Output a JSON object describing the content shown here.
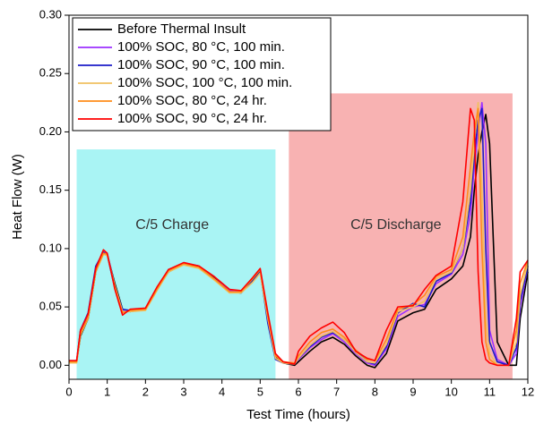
{
  "chart_data": {
    "type": "line",
    "x_label": "Test Time (hours)",
    "y_label": "Heat Flow (W)",
    "xlim": [
      0,
      12
    ],
    "xticks": [
      0,
      1,
      2,
      3,
      4,
      5,
      6,
      7,
      8,
      9,
      10,
      11,
      12
    ],
    "ylim": [
      -0.012,
      0.3
    ],
    "yticks": [
      {
        "value": 0,
        "label": "0.00"
      },
      {
        "value": 0.05,
        "label": "0.05"
      },
      {
        "value": 0.1,
        "label": "0.10"
      },
      {
        "value": 0.15,
        "label": "0.15"
      },
      {
        "value": 0.2,
        "label": "0.20"
      },
      {
        "value": 0.25,
        "label": "0.25"
      },
      {
        "value": 0.3,
        "label": "0.30"
      }
    ],
    "legend_position": "upper left",
    "regions": [
      {
        "label": "C/5 Charge",
        "x": [
          0.2,
          5.4
        ],
        "y_top": 0.185,
        "color": "#a9f4f4",
        "label_x": 2.7,
        "label_y": 0.12
      },
      {
        "label": "C/5 Discharge",
        "x": [
          5.75,
          11.6
        ],
        "y_top": 0.233,
        "color": "#f8b2b2",
        "label_x": 8.55,
        "label_y": 0.12
      }
    ],
    "x": [
      0,
      0.2,
      0.3,
      0.5,
      0.7,
      0.9,
      1.0,
      1.2,
      1.4,
      1.6,
      2.0,
      2.3,
      2.6,
      3.0,
      3.4,
      3.8,
      4.2,
      4.5,
      4.8,
      5.0,
      5.2,
      5.4,
      5.6,
      5.9,
      6.0,
      6.3,
      6.6,
      6.9,
      7.2,
      7.5,
      7.8,
      8.0,
      8.3,
      8.6,
      9.0,
      9.3,
      9.6,
      10.0,
      10.3,
      10.5,
      10.6,
      10.7,
      10.8,
      10.9,
      11.0,
      11.2,
      11.5,
      11.7,
      11.8,
      12
    ],
    "series": [
      {
        "name": "Before Thermal Insult",
        "color": "#000000",
        "values": [
          0.003,
          0.003,
          0.025,
          0.04,
          0.08,
          0.096,
          0.095,
          0.07,
          0.048,
          0.046,
          0.048,
          0.065,
          0.08,
          0.087,
          0.084,
          0.075,
          0.063,
          0.062,
          0.072,
          0.08,
          0.04,
          0.007,
          0.002,
          0.0,
          0.003,
          0.012,
          0.02,
          0.024,
          0.018,
          0.008,
          0.0,
          -0.002,
          0.01,
          0.038,
          0.045,
          0.048,
          0.065,
          0.074,
          0.085,
          0.11,
          0.15,
          0.18,
          0.2,
          0.215,
          0.19,
          0.02,
          0.0,
          0.0,
          0.04,
          0.08
        ]
      },
      {
        "name": "100% SOC, 80 °C, 100 min.",
        "color": "#9b30ff",
        "values": [
          0.003,
          0.003,
          0.028,
          0.042,
          0.082,
          0.097,
          0.096,
          0.068,
          0.047,
          0.047,
          0.048,
          0.066,
          0.081,
          0.088,
          0.085,
          0.074,
          0.064,
          0.063,
          0.074,
          0.081,
          0.038,
          0.006,
          0.002,
          0.001,
          0.005,
          0.015,
          0.022,
          0.027,
          0.02,
          0.01,
          0.002,
          0.0,
          0.014,
          0.042,
          0.05,
          0.052,
          0.07,
          0.078,
          0.095,
          0.13,
          0.17,
          0.2,
          0.225,
          0.19,
          0.03,
          0.005,
          0.0,
          0.01,
          0.05,
          0.085
        ]
      },
      {
        "name": "100% SOC, 90 °C, 100 min.",
        "color": "#1c1cc8",
        "values": [
          0.004,
          0.004,
          0.03,
          0.045,
          0.085,
          0.097,
          0.094,
          0.066,
          0.048,
          0.047,
          0.048,
          0.066,
          0.082,
          0.087,
          0.085,
          0.074,
          0.063,
          0.062,
          0.073,
          0.081,
          0.036,
          0.005,
          0.002,
          0.001,
          0.006,
          0.016,
          0.024,
          0.028,
          0.022,
          0.012,
          0.003,
          0.001,
          0.016,
          0.045,
          0.053,
          0.05,
          0.072,
          0.079,
          0.1,
          0.14,
          0.18,
          0.21,
          0.22,
          0.1,
          0.02,
          0.003,
          0.0,
          0.015,
          0.055,
          0.085
        ]
      },
      {
        "name": "100% SOC, 100 °C, 100 min.",
        "color": "#f0c060",
        "values": [
          0.002,
          0.002,
          0.026,
          0.04,
          0.08,
          0.095,
          0.094,
          0.068,
          0.046,
          0.046,
          0.047,
          0.064,
          0.08,
          0.086,
          0.083,
          0.073,
          0.062,
          0.062,
          0.071,
          0.079,
          0.04,
          0.006,
          0.002,
          0.001,
          0.006,
          0.017,
          0.025,
          0.029,
          0.022,
          0.011,
          0.003,
          0.002,
          0.018,
          0.046,
          0.05,
          0.055,
          0.074,
          0.08,
          0.1,
          0.15,
          0.19,
          0.225,
          0.15,
          0.04,
          0.01,
          0.0,
          0.0,
          0.02,
          0.06,
          0.088
        ]
      },
      {
        "name": "100% SOC, 80 °C,  24 hr.",
        "color": "#ff8c1a",
        "values": [
          0.003,
          0.003,
          0.027,
          0.041,
          0.081,
          0.096,
          0.095,
          0.067,
          0.045,
          0.047,
          0.048,
          0.065,
          0.081,
          0.087,
          0.084,
          0.074,
          0.063,
          0.063,
          0.074,
          0.082,
          0.042,
          0.008,
          0.003,
          0.002,
          0.008,
          0.02,
          0.028,
          0.031,
          0.024,
          0.013,
          0.005,
          0.004,
          0.022,
          0.048,
          0.052,
          0.06,
          0.076,
          0.082,
          0.11,
          0.17,
          0.2,
          0.22,
          0.1,
          0.02,
          0.005,
          0.0,
          0.0,
          0.03,
          0.07,
          0.09
        ]
      },
      {
        "name": "100% SOC, 90 °C,  24 hr.",
        "color": "#ff0000",
        "values": [
          0.004,
          0.004,
          0.03,
          0.044,
          0.083,
          0.099,
          0.096,
          0.065,
          0.043,
          0.048,
          0.049,
          0.067,
          0.082,
          0.088,
          0.085,
          0.076,
          0.065,
          0.064,
          0.075,
          0.083,
          0.045,
          0.01,
          0.003,
          0.001,
          0.012,
          0.025,
          0.032,
          0.037,
          0.028,
          0.012,
          0.006,
          0.004,
          0.03,
          0.05,
          0.051,
          0.065,
          0.077,
          0.085,
          0.14,
          0.22,
          0.21,
          0.08,
          0.02,
          0.005,
          0.002,
          0.0,
          0.0,
          0.04,
          0.08,
          0.09
        ]
      }
    ]
  }
}
